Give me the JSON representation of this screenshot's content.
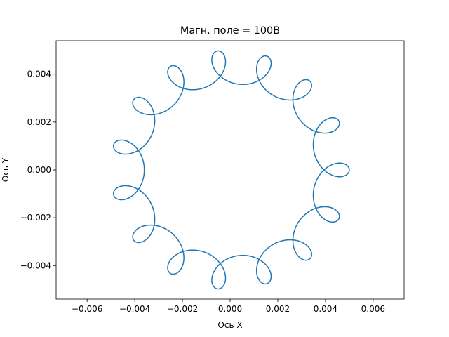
{
  "chart_data": {
    "type": "line",
    "title": "Магн. поле = 100В",
    "xlabel": "Ось X",
    "ylabel": "Ось Y",
    "xlim": [
      -0.0073,
      0.0073
    ],
    "ylim": [
      -0.0054,
      0.0054
    ],
    "xticks": [
      -0.006,
      -0.004,
      -0.002,
      0.0,
      0.002,
      0.004,
      0.006
    ],
    "xtick_labels": [
      "−0.006",
      "−0.004",
      "−0.002",
      "0.000",
      "0.002",
      "0.004",
      "0.006"
    ],
    "yticks": [
      -0.004,
      -0.002,
      0.0,
      0.002,
      0.004
    ],
    "ytick_labels": [
      "−0.004",
      "−0.002",
      "0.000",
      "0.002",
      "0.004"
    ],
    "grid": false,
    "series": [
      {
        "color": "#1f77b4",
        "curve": "epicycloid-like trajectory with ~14 scalloped loops",
        "x": [
          0.005,
          0.00455,
          0.00445,
          0.00458,
          0.0033,
          0.0034,
          0.0013,
          0.0013,
          -0.0009,
          -0.0009,
          -0.0029,
          -0.0029,
          -0.0044,
          -0.0044,
          -0.0049,
          -0.0049,
          -0.0045,
          -0.0045,
          -0.0034,
          -0.0034,
          -0.0015,
          -0.0015,
          0.0007,
          0.0007,
          0.0029,
          0.0029,
          0.0044,
          0.0044,
          0.005
        ],
        "y": [
          0.0,
          0.001,
          0.0019,
          0.002,
          0.0035,
          0.0036,
          0.00485,
          0.0049,
          0.0049,
          0.00495,
          0.004,
          0.00405,
          0.0023,
          0.00235,
          0.00015,
          0.0002,
          -0.002,
          -0.00205,
          -0.0035,
          -0.00355,
          -0.0047,
          -0.00475,
          -0.00495,
          -0.00495,
          -0.004,
          -0.00405,
          -0.0023,
          -0.00235,
          -0.0003
        ]
      }
    ]
  }
}
